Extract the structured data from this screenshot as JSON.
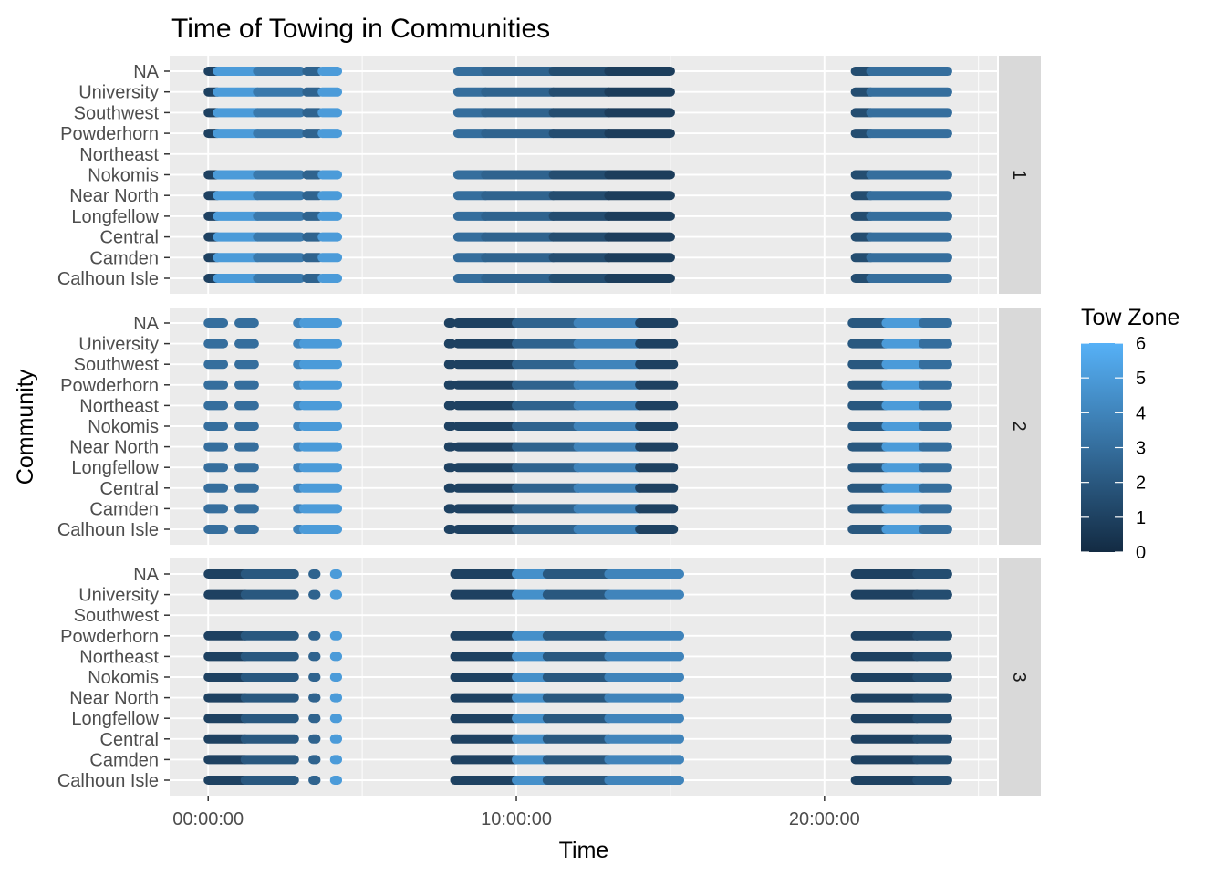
{
  "chart_data": {
    "type": "scatter",
    "title": "Time of Towing in Communities",
    "xlabel": "Time",
    "ylabel": "Community",
    "x_ticks": [
      "00:00:00",
      "10:00:00",
      "20:00:00"
    ],
    "xlim_hours": [
      -1.25,
      25.6
    ],
    "categories": [
      "Calhoun Isle",
      "Camden",
      "Central",
      "Longfellow",
      "Near North",
      "Nokomis",
      "Northeast",
      "Powderhorn",
      "Southwest",
      "University",
      "NA"
    ],
    "facets": [
      {
        "label": "1",
        "empty_categories": [
          "Northeast"
        ],
        "segments": [
          {
            "start": 0.0,
            "end": 0.3,
            "zone": 1.0
          },
          {
            "start": 0.3,
            "end": 1.6,
            "zone": 5.0
          },
          {
            "start": 1.6,
            "end": 3.0,
            "zone": 3.5
          },
          {
            "start": 3.2,
            "end": 3.6,
            "zone": 2.5
          },
          {
            "start": 3.7,
            "end": 4.2,
            "zone": 5.0
          },
          {
            "start": 8.1,
            "end": 9.0,
            "zone": 3.0
          },
          {
            "start": 9.0,
            "end": 11.2,
            "zone": 2.5
          },
          {
            "start": 11.2,
            "end": 13.0,
            "zone": 1.5
          },
          {
            "start": 13.0,
            "end": 15.0,
            "zone": 0.8
          },
          {
            "start": 21.0,
            "end": 21.5,
            "zone": 1.5
          },
          {
            "start": 21.5,
            "end": 24.0,
            "zone": 3.0
          }
        ]
      },
      {
        "label": "2",
        "empty_categories": [],
        "segments": [
          {
            "start": 0.0,
            "end": 0.5,
            "zone": 3.0
          },
          {
            "start": 1.0,
            "end": 1.5,
            "zone": 3.0
          },
          {
            "start": 2.9,
            "end": 3.0,
            "zone": 4.0
          },
          {
            "start": 3.1,
            "end": 4.2,
            "zone": 5.0
          },
          {
            "start": 7.8,
            "end": 7.9,
            "zone": 1.0
          },
          {
            "start": 8.1,
            "end": 10.0,
            "zone": 1.0
          },
          {
            "start": 10.0,
            "end": 12.0,
            "zone": 2.5
          },
          {
            "start": 12.0,
            "end": 14.0,
            "zone": 4.0
          },
          {
            "start": 14.0,
            "end": 15.1,
            "zone": 1.0
          },
          {
            "start": 20.9,
            "end": 22.0,
            "zone": 2.0
          },
          {
            "start": 22.0,
            "end": 23.2,
            "zone": 5.0
          },
          {
            "start": 23.2,
            "end": 24.0,
            "zone": 3.0
          }
        ]
      },
      {
        "label": "3",
        "empty_categories": [
          "Southwest"
        ],
        "segments": [
          {
            "start": 0.0,
            "end": 1.2,
            "zone": 1.0
          },
          {
            "start": 1.2,
            "end": 2.8,
            "zone": 2.0
          },
          {
            "start": 3.4,
            "end": 3.5,
            "zone": 2.5
          },
          {
            "start": 4.1,
            "end": 4.2,
            "zone": 5.0
          },
          {
            "start": 8.0,
            "end": 10.0,
            "zone": 1.0
          },
          {
            "start": 10.0,
            "end": 11.0,
            "zone": 4.5
          },
          {
            "start": 11.0,
            "end": 13.0,
            "zone": 2.0
          },
          {
            "start": 13.0,
            "end": 15.3,
            "zone": 4.0
          },
          {
            "start": 21.0,
            "end": 23.0,
            "zone": 1.0
          },
          {
            "start": 23.0,
            "end": 24.0,
            "zone": 1.5
          }
        ]
      }
    ],
    "legend": {
      "title": "Tow Zone",
      "min": 0,
      "max": 6,
      "ticks": [
        0,
        1,
        2,
        3,
        4,
        5,
        6
      ],
      "low_color": "#132B43",
      "high_color": "#56B1F7",
      "placement": "right"
    },
    "panel_background": "#EBEBEB",
    "strip_background": "#D9D9D9"
  }
}
